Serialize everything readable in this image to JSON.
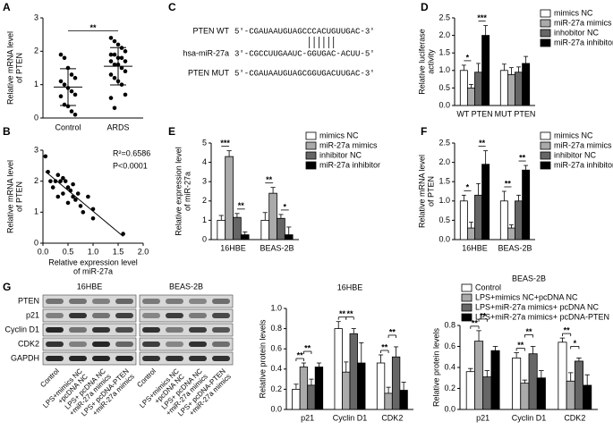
{
  "chart_data": [
    {
      "type": "dotplot",
      "panel": "A",
      "ylabel": [
        "Relative mRNA level",
        "of PTEN"
      ],
      "categories": [
        "Control",
        "ARDS"
      ],
      "values": [
        [
          1.9,
          1.8,
          1.5,
          1.3,
          1.2,
          1.1,
          1.0,
          0.9,
          0.8,
          0.7,
          0.65,
          0.4,
          0.35,
          0.2,
          0.1
        ],
        [
          2.4,
          2.3,
          2.2,
          2.1,
          2.0,
          1.9,
          1.9,
          1.8,
          1.8,
          1.7,
          1.7,
          1.6,
          1.6,
          1.5,
          1.4,
          1.3,
          1.2,
          1.1,
          1.0,
          0.7,
          0.6,
          0.3
        ]
      ],
      "ylim": [
        0,
        3
      ],
      "yticks": [
        0,
        1,
        2,
        3
      ],
      "annotation": "**"
    },
    {
      "type": "scatter",
      "panel": "B",
      "ylabel": [
        "Relative mRNA level",
        "of PTEN"
      ],
      "xlabel": [
        "Relative expression level",
        "of miR-27a"
      ],
      "x": [
        0.05,
        0.1,
        0.15,
        0.2,
        0.25,
        0.3,
        0.3,
        0.35,
        0.4,
        0.4,
        0.45,
        0.5,
        0.5,
        0.55,
        0.6,
        0.6,
        0.65,
        0.7,
        0.75,
        0.8,
        0.9,
        1.0,
        1.0,
        1.6
      ],
      "values": [
        2.8,
        2.3,
        2.0,
        1.8,
        2.0,
        2.2,
        1.5,
        2.0,
        2.1,
        1.6,
        2.0,
        1.8,
        1.3,
        1.7,
        1.9,
        1.5,
        1.4,
        1.6,
        1.2,
        1.0,
        1.5,
        0.8,
        1.1,
        0.3
      ],
      "xlim": [
        0,
        2
      ],
      "xticks": [
        {
          "value": 0,
          "label": "0.0"
        },
        {
          "value": 0.5,
          "label": "0.5"
        },
        {
          "value": 1,
          "label": "1.0"
        },
        {
          "value": 1.5,
          "label": "1.5"
        },
        {
          "value": 2,
          "label": "2.0"
        }
      ],
      "ylim": [
        0,
        3
      ],
      "yticks": [
        0,
        1,
        2,
        3
      ],
      "annotations": [
        "R²=0.6586",
        "P<0.0001"
      ]
    },
    {
      "type": "sequence",
      "panel": "C",
      "rows": [
        {
          "label": "PTEN WT",
          "sequence": "5'-CGAUAAUGUAGCCCACUGUUGAC-3'"
        },
        {
          "label": "hsa-miR-27a",
          "sequence": "3'-CGCCUUGAAUC-GGUGAC-ACUU-5'"
        },
        {
          "label": "PTEN MUT",
          "sequence": "5'-CGAUAAUGUAGCGGUGACUUGAC-3'"
        }
      ]
    },
    {
      "type": "bar",
      "panel": "D",
      "ylabel": [
        "Relative luciferase",
        "activity"
      ],
      "categories": [
        "WT PTEN",
        "MUT PTEN"
      ],
      "series": [
        {
          "name": "mimics NC",
          "color": "#ffffff",
          "values": [
            1.0,
            1.0
          ],
          "errors": [
            0.15,
            0.18
          ]
        },
        {
          "name": "miR-27a mimics",
          "color": "#aaaaaa",
          "values": [
            0.5,
            0.88
          ],
          "errors": [
            0.1,
            0.2
          ]
        },
        {
          "name": "inhobitor NC",
          "color": "#666666",
          "values": [
            0.95,
            0.95
          ],
          "errors": [
            0.25,
            0.15
          ]
        },
        {
          "name": "miR-27a inhibitor",
          "color": "#000000",
          "values": [
            2.0,
            1.2
          ],
          "errors": [
            0.28,
            0.2
          ]
        }
      ],
      "ylim": [
        0,
        2.5
      ],
      "yticks": [
        {
          "value": 0,
          "label": "0.0"
        },
        {
          "value": 0.5,
          "label": "0.5"
        },
        {
          "value": 1,
          "label": "1.0"
        },
        {
          "value": 1.5,
          "label": "1.5"
        },
        {
          "value": 2,
          "label": "2.0"
        },
        {
          "value": 2.5,
          "label": "2.5"
        }
      ],
      "annotations": [
        {
          "text": "*",
          "category": 0,
          "bars": [
            0,
            1
          ]
        },
        {
          "text": "***",
          "category": 0,
          "bars": [
            2,
            3
          ]
        }
      ]
    },
    {
      "type": "bar",
      "panel": "E",
      "ylabel": [
        "Relative expression level",
        "of miR-27a"
      ],
      "categories": [
        "16HBE",
        "BEAS-2B"
      ],
      "series": [
        {
          "name": "mimics NC",
          "color": "#ffffff",
          "values": [
            1.0,
            1.0
          ],
          "errors": [
            0.25,
            0.4
          ]
        },
        {
          "name": "miR-27a mimics",
          "color": "#aaaaaa",
          "values": [
            4.3,
            2.4
          ],
          "errors": [
            0.3,
            0.3
          ]
        },
        {
          "name": "inhibitor NC",
          "color": "#666666",
          "values": [
            1.15,
            1.1
          ],
          "errors": [
            0.2,
            0.2
          ]
        },
        {
          "name": "miR-27a inhibitor",
          "color": "#000000",
          "values": [
            0.25,
            0.25
          ],
          "errors": [
            0.15,
            0.4
          ]
        }
      ],
      "ylim": [
        0,
        5
      ],
      "yticks": [
        0,
        1,
        2,
        3,
        4,
        5
      ],
      "annotations": [
        {
          "text": "***",
          "category": 0,
          "bars": [
            0,
            1
          ]
        },
        {
          "text": "**",
          "category": 0,
          "bars": [
            2,
            3
          ]
        },
        {
          "text": "**",
          "category": 1,
          "bars": [
            0,
            1
          ]
        },
        {
          "text": "*",
          "category": 1,
          "bars": [
            2,
            3
          ]
        }
      ]
    },
    {
      "type": "bar",
      "panel": "F",
      "ylabel": [
        "Relative mRNA level",
        "of PTEN"
      ],
      "categories": [
        "16HBE",
        "BEAS-2B"
      ],
      "series": [
        {
          "name": "mimics NC",
          "color": "#ffffff",
          "values": [
            1.0,
            1.0
          ],
          "errors": [
            0.15,
            0.25
          ]
        },
        {
          "name": "miR-27a mimics",
          "color": "#aaaaaa",
          "values": [
            0.3,
            0.3
          ],
          "errors": [
            0.15,
            0.08
          ]
        },
        {
          "name": "inhibitor NC",
          "color": "#666666",
          "values": [
            1.15,
            1.0
          ],
          "errors": [
            0.3,
            0.15
          ]
        },
        {
          "name": "miR-27a inhibitor",
          "color": "#000000",
          "values": [
            1.95,
            1.8
          ],
          "errors": [
            0.35,
            0.12
          ]
        }
      ],
      "ylim": [
        0,
        2.5
      ],
      "yticks": [
        {
          "value": 0,
          "label": "0.0"
        },
        {
          "value": 0.5,
          "label": "0.5"
        },
        {
          "value": 1,
          "label": "1.0"
        },
        {
          "value": 1.5,
          "label": "1.5"
        },
        {
          "value": 2,
          "label": "2.0"
        },
        {
          "value": 2.5,
          "label": "2.5"
        }
      ],
      "annotations": [
        {
          "text": "*",
          "category": 0,
          "bars": [
            0,
            1
          ]
        },
        {
          "text": "**",
          "category": 0,
          "bars": [
            2,
            3
          ]
        },
        {
          "text": "**",
          "category": 1,
          "bars": [
            0,
            1
          ]
        },
        {
          "text": "**",
          "category": 1,
          "bars": [
            2,
            3
          ]
        }
      ]
    },
    {
      "type": "blot",
      "panel": "G",
      "titles": [
        "16HBE",
        "BEAS-2B"
      ],
      "proteins": [
        "PTEN",
        "p21",
        "Cyclin D1",
        "CDK2",
        "GAPDH"
      ],
      "lanes": [
        [
          "Control"
        ],
        [
          "LPS+mimics NC",
          "+pcDNA NC"
        ],
        [
          "LPS+ pcDNA NC",
          "+miR-27a mimics"
        ],
        [
          "LPS+ pcDNA-PTEN",
          "+miR-27a mimics"
        ]
      ]
    },
    {
      "type": "bar",
      "title": "16HBE",
      "ylabel": [
        "Relative protein levels"
      ],
      "categories": [
        "p21",
        "Cyclin D1",
        "CDK2"
      ],
      "series": [
        {
          "color": "#ffffff",
          "values": [
            0.2,
            0.8,
            0.46
          ],
          "errors": [
            0.05,
            0.07,
            0.08
          ]
        },
        {
          "color": "#aaaaaa",
          "values": [
            0.42,
            0.37,
            0.16
          ],
          "errors": [
            0.04,
            0.1,
            0.06
          ]
        },
        {
          "color": "#666666",
          "values": [
            0.24,
            0.75,
            0.52
          ],
          "errors": [
            0.06,
            0.05,
            0.1
          ]
        },
        {
          "color": "#000000",
          "values": [
            0.42,
            0.46,
            0.19
          ],
          "errors": [
            0.04,
            0.2,
            0.08
          ]
        }
      ],
      "ylim": [
        0,
        1
      ],
      "yticks": [
        {
          "value": 0,
          "label": "0.0"
        },
        {
          "value": 0.2,
          "label": "0.2"
        },
        {
          "value": 0.4,
          "label": "0.4"
        },
        {
          "value": 0.6,
          "label": "0.6"
        },
        {
          "value": 0.8,
          "label": "0.8"
        },
        {
          "value": 1,
          "label": "1.0"
        }
      ],
      "annotations": [
        {
          "text": "**",
          "category": 0,
          "bars": [
            0,
            1
          ]
        },
        {
          "text": "**",
          "category": 0,
          "bars": [
            1,
            2
          ]
        },
        {
          "text": "**",
          "category": 1,
          "bars": [
            0,
            1
          ]
        },
        {
          "text": "**",
          "category": 1,
          "bars": [
            1,
            2
          ]
        },
        {
          "text": "**",
          "category": 2,
          "bars": [
            0,
            1
          ]
        },
        {
          "text": "**",
          "category": 2,
          "bars": [
            1,
            2
          ]
        }
      ]
    },
    {
      "type": "bar",
      "title": "BEAS-2B",
      "ylabel": [
        "Relative protein levels"
      ],
      "categories": [
        "p21",
        "Cyclin D1",
        "CDK2"
      ],
      "series": [
        {
          "name": "Control",
          "color": "#ffffff",
          "values": [
            0.36,
            0.49,
            0.64
          ],
          "errors": [
            0.03,
            0.05,
            0.04
          ]
        },
        {
          "name": "LPS+mimics NC+pcDNA NC",
          "color": "#aaaaaa",
          "values": [
            0.65,
            0.25,
            0.27
          ],
          "errors": [
            0.1,
            0.03,
            0.08
          ]
        },
        {
          "name": "LPS+miR-27a mimics+ pcDNA NC",
          "color": "#666666",
          "values": [
            0.31,
            0.53,
            0.46
          ],
          "errors": [
            0.06,
            0.07,
            0.03
          ]
        },
        {
          "name": "LPS+miR-27a mimics+ pcDNA-PTEN",
          "color": "#000000",
          "values": [
            0.56,
            0.3,
            0.23
          ],
          "errors": [
            0.04,
            0.07,
            0.1
          ]
        }
      ],
      "ylim": [
        0,
        0.8
      ],
      "yticks": [
        {
          "value": 0,
          "label": "0.0"
        },
        {
          "value": 0.2,
          "label": "0.2"
        },
        {
          "value": 0.4,
          "label": "0.4"
        },
        {
          "value": 0.6,
          "label": "0.6"
        },
        {
          "value": 0.8,
          "label": "0.8"
        }
      ],
      "annotations": [
        {
          "text": "**",
          "category": 0,
          "bars": [
            0,
            1
          ]
        },
        {
          "text": "**",
          "category": 0,
          "bars": [
            1,
            2
          ]
        },
        {
          "text": "**",
          "category": 1,
          "bars": [
            0,
            1
          ]
        },
        {
          "text": "**",
          "category": 1,
          "bars": [
            1,
            2
          ]
        },
        {
          "text": "**",
          "category": 2,
          "bars": [
            0,
            1
          ]
        },
        {
          "text": "*",
          "category": 2,
          "bars": [
            1,
            2
          ]
        }
      ]
    }
  ]
}
